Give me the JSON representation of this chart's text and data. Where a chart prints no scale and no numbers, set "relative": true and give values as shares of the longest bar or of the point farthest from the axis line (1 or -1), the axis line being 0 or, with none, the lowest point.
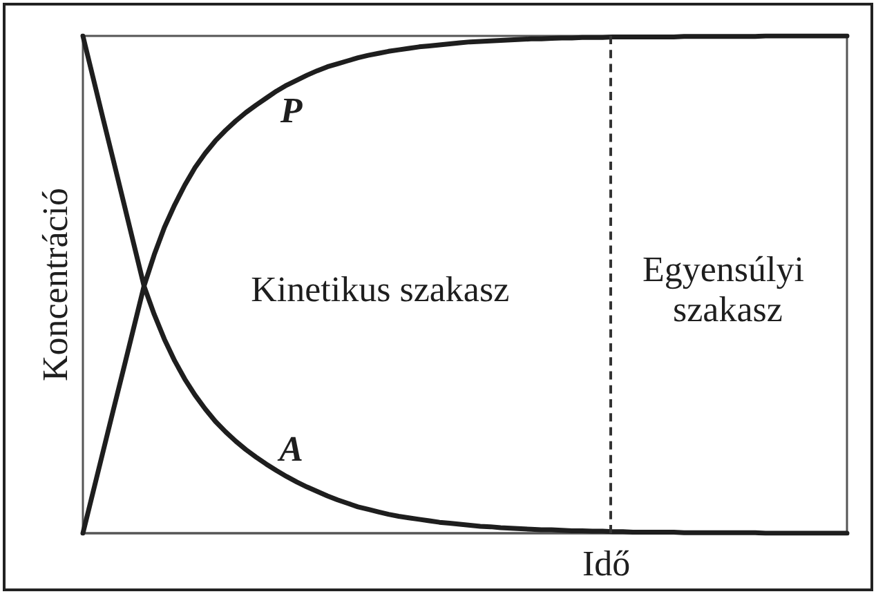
{
  "chart_data": {
    "type": "line",
    "relative": true,
    "xlabel": "Idő",
    "ylabel": "Koncentráció",
    "categories": [
      null,
      null,
      null,
      null,
      null,
      null,
      null,
      null,
      null,
      null,
      null,
      null,
      null,
      null,
      null,
      null,
      null,
      null,
      null,
      null,
      null,
      null,
      null,
      null,
      null,
      null,
      null,
      null,
      null,
      null,
      null,
      null,
      null,
      null,
      null,
      null,
      null,
      null,
      null,
      null,
      null,
      null,
      null,
      null,
      null,
      null,
      null,
      null,
      null,
      null,
      null,
      null,
      null,
      null,
      null,
      null,
      null,
      null,
      null,
      null,
      null,
      null,
      null,
      null,
      null,
      null,
      null,
      null,
      null,
      null,
      null,
      null,
      null,
      null,
      null,
      null
    ],
    "series": [
      {
        "name": "P",
        "color": "#1e1e1e",
        "values": [
          0,
          0.083,
          0.166,
          0.249,
          0.331,
          0.414,
          0.497,
          0.56,
          0.615,
          0.66,
          0.7,
          0.735,
          0.764,
          0.789,
          0.81,
          0.829,
          0.846,
          0.861,
          0.875,
          0.889,
          0.901,
          0.911,
          0.921,
          0.93,
          0.938,
          0.944,
          0.95,
          0.956,
          0.961,
          0.965,
          0.969,
          0.972,
          0.975,
          0.978,
          0.98,
          0.982,
          0.984,
          0.986,
          0.988,
          0.989,
          0.99,
          0.991,
          0.992,
          0.993,
          0.994,
          0.994,
          0.995,
          0.996,
          0.996,
          0.997,
          0.997,
          0.997,
          0.998,
          0.998,
          0.998,
          0.998,
          0.998,
          0.998,
          0.998,
          0.999,
          0.999,
          0.999,
          0.999,
          0.999,
          0.999,
          0.999,
          0.999,
          1,
          1,
          1,
          1,
          1,
          1,
          1,
          1,
          1
        ]
      },
      {
        "name": "A",
        "color": "#1e1e1e",
        "values": [
          1,
          0.916,
          0.832,
          0.749,
          0.665,
          0.581,
          0.497,
          0.44,
          0.39,
          0.347,
          0.31,
          0.278,
          0.25,
          0.225,
          0.204,
          0.185,
          0.168,
          0.153,
          0.139,
          0.126,
          0.114,
          0.103,
          0.093,
          0.084,
          0.075,
          0.067,
          0.06,
          0.053,
          0.048,
          0.043,
          0.038,
          0.034,
          0.031,
          0.028,
          0.025,
          0.022,
          0.02,
          0.018,
          0.016,
          0.014,
          0.013,
          0.011,
          0.01,
          0.009,
          0.008,
          0.007,
          0.007,
          0.006,
          0.005,
          0.005,
          0.004,
          0.004,
          0.003,
          0.003,
          0.002,
          0.002,
          0.002,
          0.002,
          0.002,
          0.001,
          0.001,
          0.001,
          0.001,
          0.001,
          0.001,
          0.001,
          0.001,
          0,
          0,
          0,
          0,
          0,
          0,
          0,
          0,
          0
        ]
      }
    ],
    "annotations": [
      "Kinetikus szakasz",
      "Egyensúlyi szakasz"
    ],
    "tick_labels": false
  }
}
